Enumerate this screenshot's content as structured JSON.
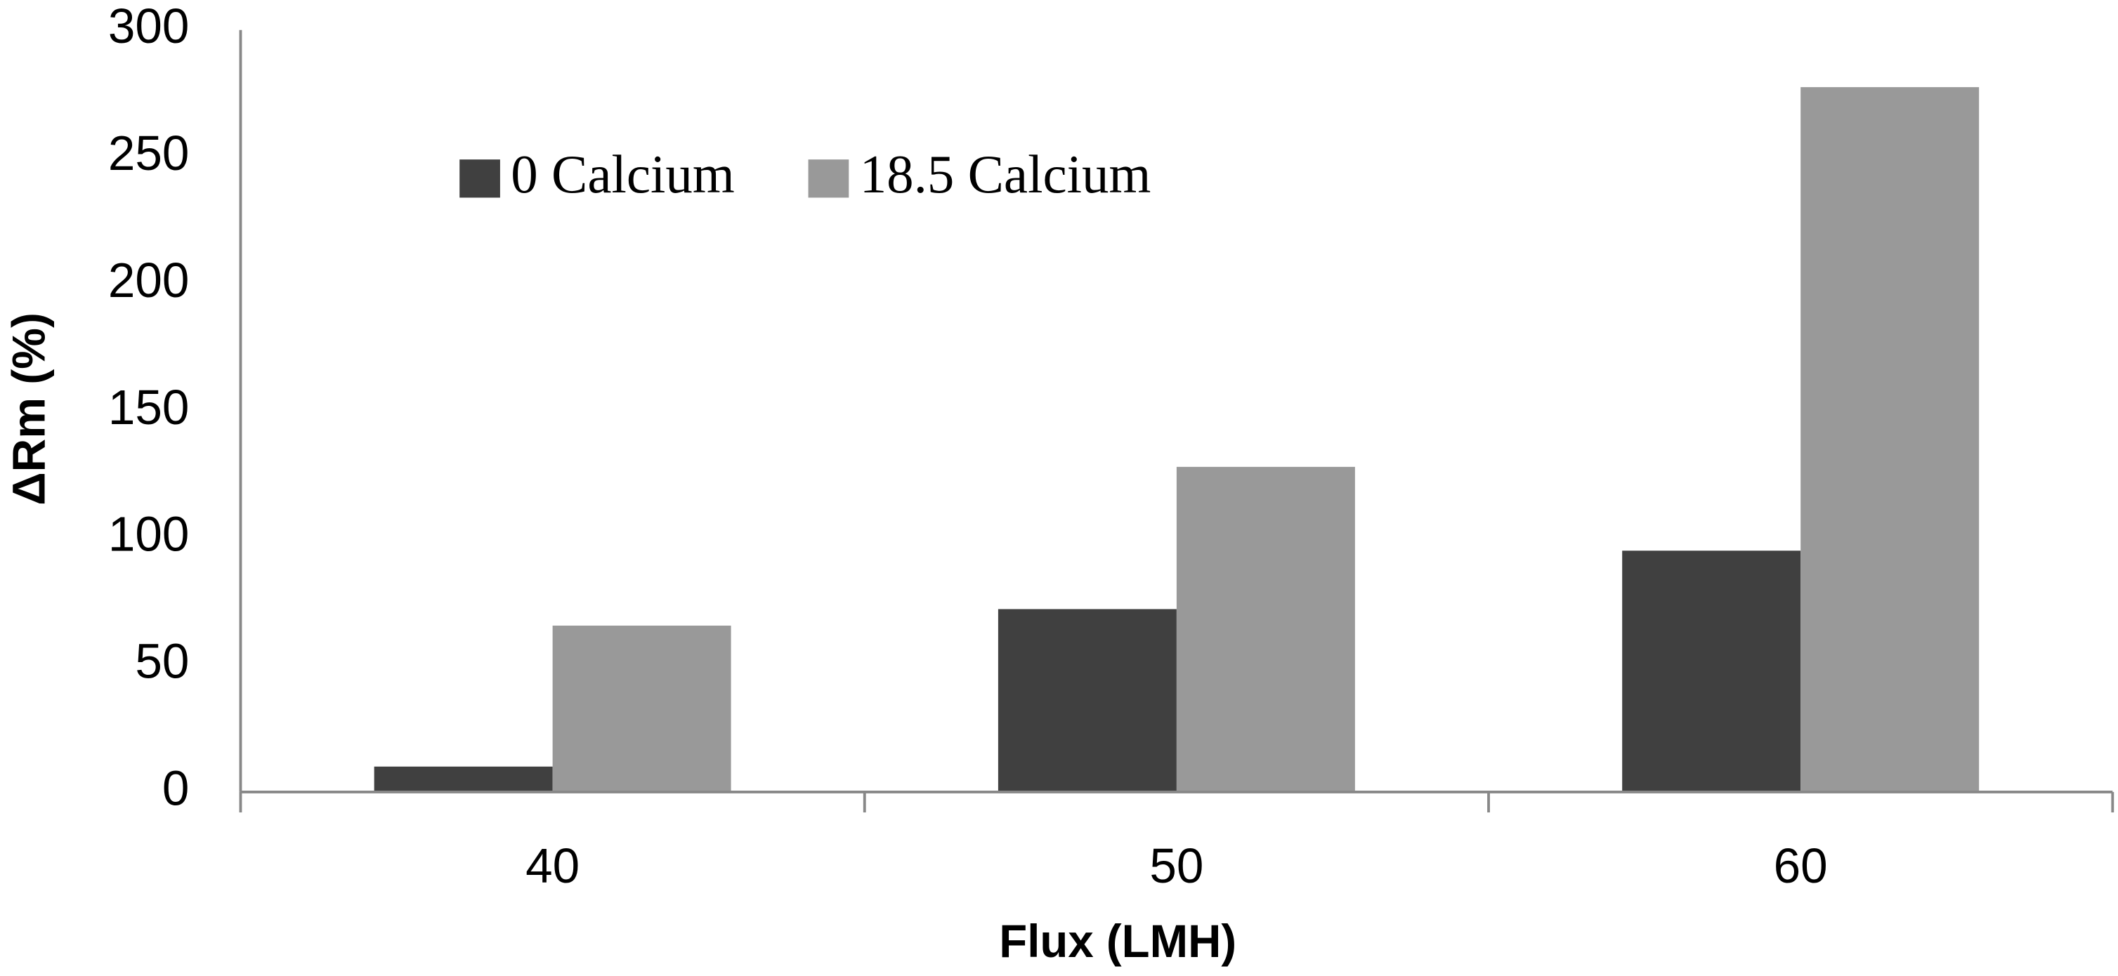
{
  "chart_data": {
    "type": "bar",
    "x_label": "Flux (LMH)",
    "y_label": "ΔRm (%)",
    "categories": [
      "40",
      "50",
      "60"
    ],
    "series": [
      {
        "name": "0 Calcium",
        "color": "#404040",
        "values": [
          10,
          72,
          95
        ]
      },
      {
        "name": "18.5 Calcium",
        "color": "#999999",
        "values": [
          65.5,
          128,
          277.5
        ]
      }
    ],
    "ylim": [
      0,
      300
    ],
    "yticks": [
      0,
      50,
      100,
      150,
      200,
      250,
      300
    ],
    "grid": false
  }
}
